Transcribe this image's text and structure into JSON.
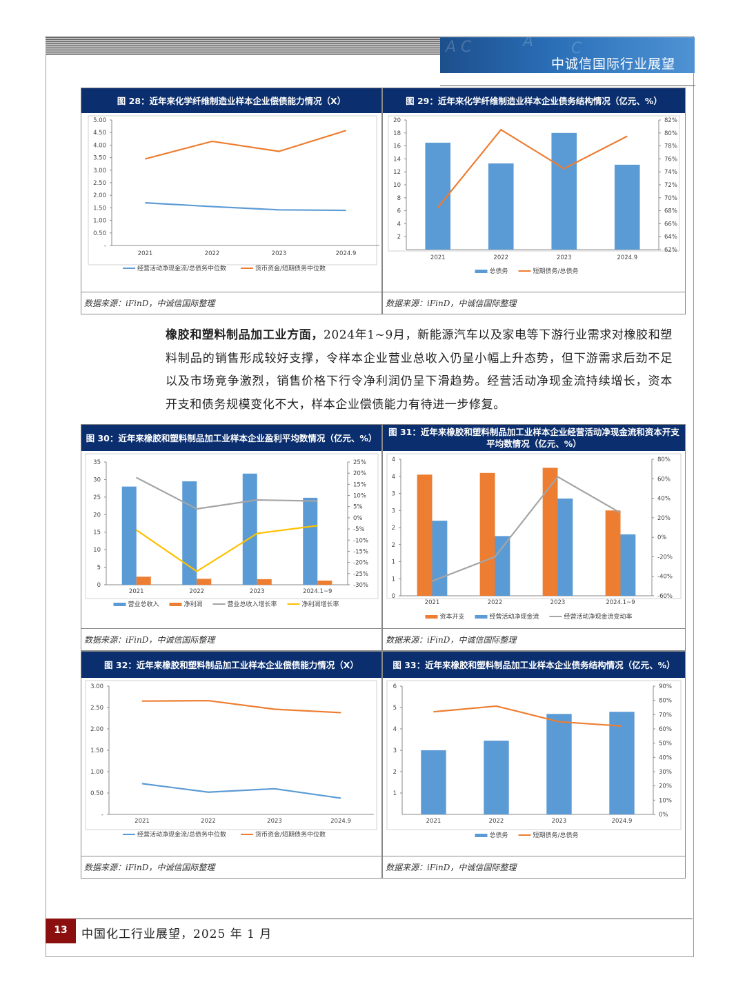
{
  "header": {
    "title": "中诚信国际行业展望"
  },
  "figures": {
    "f28": {
      "title": "图 28：近年来化学纤维制造业样本企业偿债能力情况（X）",
      "source": "数据来源：iFinD，中诚信国际整理"
    },
    "f29": {
      "title": "图 29：近年来化学纤维制造业样本企业债务结构情况（亿元、%）",
      "source": "数据来源：iFinD，中诚信国际整理"
    },
    "f30": {
      "title": "图 30：近年来橡胶和塑料制品加工业样本企业盈利平均数情况（亿元、%）",
      "source": "数据来源：iFinD，中诚信国际整理"
    },
    "f31": {
      "title": "图 31：近年来橡胶和塑料制品加工业样本企业经营活动净现金流和资本开支平均数情况（亿元、%）",
      "source": "数据来源：iFinD，中诚信国际整理"
    },
    "f32": {
      "title": "图 32：近年来橡胶和塑料制品加工业样本企业偿债能力情况（X）",
      "source": "数据来源：iFinD，中诚信国际整理"
    },
    "f33": {
      "title": "图 33：近年来橡胶和塑料制品加工业样本企业债务结构情况（亿元、%）",
      "source": "数据来源：iFinD，中诚信国际整理"
    }
  },
  "paragraph": {
    "lead": "橡胶和塑料制品加工业方面，",
    "body": "2024年1~9月，新能源汽车以及家电等下游行业需求对橡胶和塑料制品的销售形成较好支撑，令样本企业营业总收入仍呈小幅上升态势，但下游需求后劲不足以及市场竞争激烈，销售价格下行令净利润仍呈下滑趋势。经营活动净现金流持续增长，资本开支和债务规模变化不大，样本企业偿债能力有待进一步修复。"
  },
  "footer": {
    "page_number": "13",
    "text": "中国化工行业展望，2025 年 1 月"
  },
  "chart_data": [
    {
      "id": "f28",
      "type": "line",
      "categories": [
        "2021",
        "2022",
        "2023",
        "2024.9"
      ],
      "ylim": [
        0,
        5
      ],
      "yticks": [
        "-",
        "0.50",
        "1.00",
        "1.50",
        "2.00",
        "2.50",
        "3.00",
        "3.50",
        "4.00",
        "4.50",
        "5.00"
      ],
      "series": [
        {
          "name": "经营活动净现金流/总债务中位数",
          "color": "#5b9bd5",
          "values": [
            1.7,
            1.55,
            1.42,
            1.4
          ]
        },
        {
          "name": "货币资金/短期债务中位数",
          "color": "#ed7d31",
          "values": [
            3.45,
            4.15,
            3.75,
            4.58
          ]
        }
      ]
    },
    {
      "id": "f29",
      "type": "bar+line",
      "categories": [
        "2021",
        "2022",
        "2023",
        "2024.9"
      ],
      "ylim": [
        0,
        20
      ],
      "yticks": [
        "2",
        "4",
        "6",
        "8",
        "10",
        "12",
        "14",
        "16",
        "18",
        "20"
      ],
      "y2lim": [
        62,
        82
      ],
      "y2ticks": [
        "62%",
        "64%",
        "66%",
        "68%",
        "70%",
        "72%",
        "74%",
        "76%",
        "78%",
        "80%",
        "82%"
      ],
      "series": [
        {
          "name": "总债务",
          "color": "#5b9bd5",
          "kind": "bar",
          "values": [
            16.5,
            13.3,
            18.0,
            13.1
          ]
        },
        {
          "name": "短期债务/总债务",
          "color": "#ed7d31",
          "kind": "line",
          "axis": "right",
          "values": [
            68.5,
            80.5,
            74.5,
            79.5
          ]
        }
      ]
    },
    {
      "id": "f30",
      "type": "bar+line",
      "categories": [
        "2021",
        "2022",
        "2023",
        "2024.1~9"
      ],
      "ylim": [
        0,
        35
      ],
      "yticks": [
        "0",
        "5",
        "10",
        "15",
        "20",
        "25",
        "30",
        "35"
      ],
      "y2lim": [
        -30,
        25
      ],
      "y2ticks": [
        "-30%",
        "-25%",
        "-20%",
        "-15%",
        "-10%",
        "-5%",
        "0%",
        "5%",
        "10%",
        "15%",
        "20%",
        "25%"
      ],
      "series": [
        {
          "name": "营业总收入",
          "color": "#5b9bd5",
          "kind": "bar",
          "values": [
            28.0,
            29.5,
            31.7,
            24.8
          ]
        },
        {
          "name": "净利润",
          "color": "#ed7d31",
          "kind": "bar",
          "values": [
            2.3,
            1.7,
            1.6,
            1.2
          ]
        },
        {
          "name": "营业总收入增长率",
          "color": "#a5a5a5",
          "kind": "line",
          "axis": "right",
          "values": [
            18.0,
            4.0,
            8.0,
            7.5
          ]
        },
        {
          "name": "净利润增长率",
          "color": "#ffc000",
          "kind": "line",
          "axis": "right",
          "values": [
            -5.5,
            -24.0,
            -7.0,
            -3.5
          ]
        }
      ]
    },
    {
      "id": "f31",
      "type": "bar+line",
      "categories": [
        "2021",
        "2022",
        "2023",
        "2024.1~9"
      ],
      "ylim": [
        0,
        4
      ],
      "yticks": [
        "0",
        "1",
        "1",
        "2",
        "2",
        "3",
        "3",
        "4",
        "4"
      ],
      "y2lim": [
        -60,
        80
      ],
      "y2ticks": [
        "-60%",
        "-40%",
        "-20%",
        "0%",
        "20%",
        "40%",
        "60%",
        "80%"
      ],
      "series": [
        {
          "name": "资本开支",
          "color": "#ed7d31",
          "kind": "bar",
          "values": [
            3.55,
            3.6,
            3.75,
            2.5
          ]
        },
        {
          "name": "经营活动净现金流",
          "color": "#5b9bd5",
          "kind": "bar",
          "values": [
            2.2,
            1.75,
            2.85,
            1.8
          ]
        },
        {
          "name": "经营活动净现金流变动率",
          "color": "#a5a5a5",
          "kind": "line",
          "axis": "right",
          "values": [
            -45.0,
            -20.0,
            62.0,
            25.0
          ]
        }
      ]
    },
    {
      "id": "f32",
      "type": "line",
      "categories": [
        "2021",
        "2022",
        "2023",
        "2024.9"
      ],
      "ylim": [
        0,
        3
      ],
      "yticks": [
        "-",
        "0.50",
        "1.00",
        "1.50",
        "2.00",
        "2.50",
        "3.00"
      ],
      "series": [
        {
          "name": "经营活动净现金流/总债务中位数",
          "color": "#5b9bd5",
          "values": [
            0.72,
            0.52,
            0.6,
            0.38
          ]
        },
        {
          "name": "货币资金/短期债务中位数",
          "color": "#ed7d31",
          "values": [
            2.65,
            2.66,
            2.46,
            2.38
          ]
        }
      ]
    },
    {
      "id": "f33",
      "type": "bar+line",
      "categories": [
        "2021",
        "2022",
        "2023",
        "2024.9"
      ],
      "ylim": [
        0,
        6
      ],
      "yticks": [
        "1",
        "2",
        "3",
        "4",
        "5",
        "6"
      ],
      "y2lim": [
        0,
        90
      ],
      "y2ticks": [
        "0%",
        "10%",
        "20%",
        "30%",
        "40%",
        "50%",
        "60%",
        "70%",
        "80%",
        "90%"
      ],
      "series": [
        {
          "name": "总债务",
          "color": "#5b9bd5",
          "kind": "bar",
          "values": [
            3.0,
            3.45,
            4.7,
            4.8
          ]
        },
        {
          "name": "短期债务/总债务",
          "color": "#ed7d31",
          "kind": "line",
          "axis": "right",
          "values": [
            72.0,
            76.0,
            65.0,
            62.0
          ]
        }
      ]
    }
  ]
}
